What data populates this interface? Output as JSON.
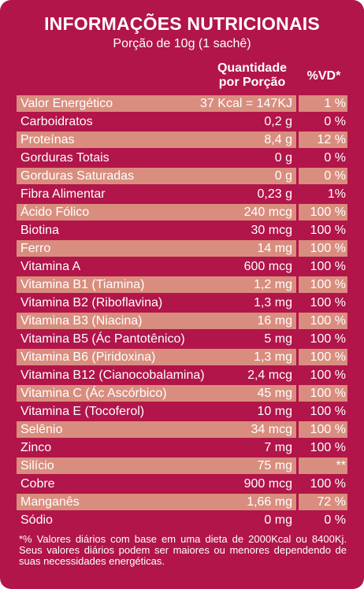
{
  "title": "INFORMAÇÕES NUTRICIONAIS",
  "subtitle": "Porção de 10g (1 sachê)",
  "header": {
    "qty_line1": "Quantidade",
    "qty_line2": "por Porção",
    "vd": "%VD*"
  },
  "rows": [
    {
      "name": "Valor Energético",
      "qty": "37 Kcal = 147KJ",
      "vd": "1 %"
    },
    {
      "name": "Carboidratos",
      "qty": "0,2 g",
      "vd": "0 %"
    },
    {
      "name": "Proteínas",
      "qty": "8,4 g",
      "vd": "12 %"
    },
    {
      "name": "Gorduras Totais",
      "qty": "0 g",
      "vd": "0 %"
    },
    {
      "name": "Gorduras Saturadas",
      "qty": "0 g",
      "vd": "0 %"
    },
    {
      "name": "Fibra Alimentar",
      "qty": "0,23 g",
      "vd": "1%"
    },
    {
      "name": "Ácido Fólico",
      "qty": "240 mcg",
      "vd": "100 %"
    },
    {
      "name": "Biotina",
      "qty": "30 mcg",
      "vd": "100 %"
    },
    {
      "name": "Ferro",
      "qty": "14 mg",
      "vd": "100 %"
    },
    {
      "name": "Vitamina A",
      "qty": "600 mcg",
      "vd": "100 %"
    },
    {
      "name": "Vitamina B1 (Tiamina)",
      "qty": "1,2 mg",
      "vd": "100 %"
    },
    {
      "name": "Vitamina B2 (Riboflavina)",
      "qty": "1,3 mg",
      "vd": "100 %"
    },
    {
      "name": "Vitamina B3 (Niacina)",
      "qty": "16 mg",
      "vd": "100 %"
    },
    {
      "name": "Vitamina B5 (Ác Pantotênico)",
      "qty": "5 mg",
      "vd": "100 %"
    },
    {
      "name": "Vitamina B6 (Piridoxina)",
      "qty": "1,3 mg",
      "vd": "100 %"
    },
    {
      "name": "Vitamina B12 (Cianocobalamina)",
      "qty": "2,4 mcg",
      "vd": "100 %"
    },
    {
      "name": "Vitamina C (Ác Ascórbico)",
      "qty": "45 mg",
      "vd": "100 %"
    },
    {
      "name": "Vitamina E (Tocoferol)",
      "qty": "10 mg",
      "vd": "100 %"
    },
    {
      "name": "Selênio",
      "qty": "34 mcg",
      "vd": "100 %"
    },
    {
      "name": "Zinco",
      "qty": "7 mg",
      "vd": "100 %"
    },
    {
      "name": "Silício",
      "qty": "75 mg",
      "vd": "**"
    },
    {
      "name": "Cobre",
      "qty": "900 mcg",
      "vd": "100 %"
    },
    {
      "name": "Manganês",
      "qty": "1,66 mg",
      "vd": "72 %"
    },
    {
      "name": "Sódio",
      "qty": "0 mg",
      "vd": "0 %"
    }
  ],
  "footnote": "*% Valores diários com base em uma dieta de 2000Kcal ou 8400Kj. Seus valores diários podem ser maiores ou  menores dependendo de suas necessidades energéticas.",
  "colors": {
    "panel": "#b1154a",
    "row_tint": "#d98d7e",
    "text": "#ffffff"
  }
}
